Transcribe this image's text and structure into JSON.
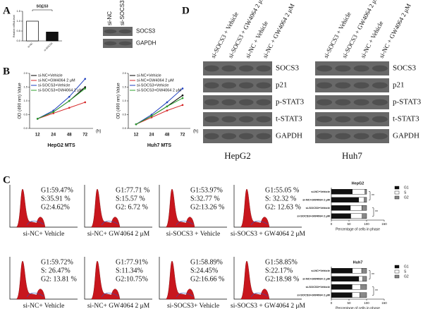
{
  "panel_labels": [
    "A",
    "B",
    "C",
    "D"
  ],
  "chart_data": [
    {
      "type": "bar",
      "title": "SOCS3",
      "y_label": "Relative mRNA level",
      "categories": [
        "si-NC",
        "si-SOCS3"
      ],
      "values": [
        1.0,
        0.45
      ],
      "colors": [
        "#ffffff",
        "#111111"
      ],
      "ylim": [
        0,
        1.5
      ],
      "yticks": [
        {
          "value": 0,
          "label": "0.0"
        },
        0.5,
        {
          "value": 1,
          "label": "1.0"
        },
        1.5
      ],
      "annotations": [
        "**"
      ]
    },
    {
      "type": "line",
      "title": "HepG2  MTS",
      "y_label": "OD (490 nm) Value",
      "x_unit": "(h)",
      "categories": [
        "12",
        "24",
        "48",
        "72"
      ],
      "ylim": [
        0,
        2
      ],
      "yticks": [
        {
          "value": 0,
          "label": "0.0"
        },
        0.5,
        {
          "value": 1,
          "label": "1.0"
        },
        1.5,
        {
          "value": 2,
          "label": "2.0"
        }
      ],
      "series": [
        {
          "name": "si-NC+Vehicle",
          "color": "#000000",
          "values": [
            0.35,
            0.6,
            1.0,
            1.5
          ]
        },
        {
          "name": "si-NC+GW4064  2 μM",
          "color": "#d62728",
          "values": [
            0.35,
            0.55,
            0.75,
            0.95
          ]
        },
        {
          "name": "si-SOCS3+Vehicle",
          "color": "#1f3fbf",
          "values": [
            0.35,
            0.65,
            1.15,
            1.8
          ]
        },
        {
          "name": "si-SOCS3+GW4064  2 μM",
          "color": "#2ca02c",
          "values": [
            0.35,
            0.6,
            1.0,
            1.45
          ]
        }
      ]
    },
    {
      "type": "line",
      "title": "Huh7  MTS",
      "y_label": "OD (490 nm) Value",
      "x_unit": "(h)",
      "categories": [
        "12",
        "24",
        "48",
        "72"
      ],
      "ylim": [
        0,
        2
      ],
      "yticks": [
        {
          "value": 0,
          "label": "0.0"
        },
        0.5,
        {
          "value": 1,
          "label": "1.0"
        },
        1.5,
        {
          "value": 2,
          "label": "2.0"
        }
      ],
      "series": [
        {
          "name": "si-NC+Vehicle",
          "color": "#000000",
          "values": [
            0.15,
            0.45,
            0.8,
            1.2
          ]
        },
        {
          "name": "si-NC+GW4064  2 μM",
          "color": "#d62728",
          "values": [
            0.15,
            0.4,
            0.65,
            0.85
          ]
        },
        {
          "name": "si-SOCS3+Vehicle",
          "color": "#1f3fbf",
          "values": [
            0.15,
            0.5,
            0.95,
            1.45
          ]
        },
        {
          "name": "si-SOCS3+GW4064  2 μM",
          "color": "#2ca02c",
          "values": [
            0.15,
            0.45,
            0.8,
            1.1
          ]
        }
      ]
    },
    {
      "type": "bar",
      "orientation": "horizontal",
      "stacked": true,
      "title": "HepG2",
      "x_label": "Percentage of cells in phase",
      "categories": [
        "si-NC+Vehicle",
        "si-NC+GW4064 2 μM",
        "si-SOCS3+Vehicle",
        "si-SOCS3+GW4064 2 μM"
      ],
      "xlim": [
        0,
        150
      ],
      "xticks": [
        0,
        50,
        100,
        150
      ],
      "annotations": [
        "**",
        "**"
      ],
      "series": [
        {
          "name": "G1",
          "color": "#111111",
          "values": [
            59.47,
            77.71,
            53.97,
            55.05
          ]
        },
        {
          "name": "S",
          "color": "#ffffff",
          "values": [
            35.91,
            15.57,
            32.77,
            32.32
          ]
        },
        {
          "name": "G2",
          "color": "#888888",
          "values": [
            4.62,
            6.72,
            13.26,
            12.63
          ]
        }
      ]
    },
    {
      "type": "bar",
      "orientation": "horizontal",
      "stacked": true,
      "title": "Huh7",
      "x_label": "Percentage of cells in phase",
      "categories": [
        "si-NC+Vehicle",
        "si-NC+GW4064 2 μM",
        "si-SOCS3+Vehicle",
        "si-SOCS3+GW4064 2 μM"
      ],
      "xlim": [
        0,
        150
      ],
      "xticks": [
        0,
        50,
        100,
        150
      ],
      "annotations": [
        "**",
        "**"
      ],
      "series": [
        {
          "name": "G1",
          "color": "#111111",
          "values": [
            59.72,
            77.91,
            58.89,
            58.85
          ]
        },
        {
          "name": "S",
          "color": "#ffffff",
          "values": [
            26.47,
            11.34,
            24.45,
            22.17
          ]
        },
        {
          "name": "G2",
          "color": "#888888",
          "values": [
            13.81,
            10.75,
            16.66,
            18.98
          ]
        }
      ]
    }
  ],
  "blot_A": {
    "lanes": [
      "si-NC",
      "si-SOCS3"
    ],
    "rows": [
      "SOCS3",
      "GAPDH"
    ]
  },
  "blot_D": {
    "lanes": [
      "si-SOCS3 + Vehicle",
      "si-SOCS3 + GW4064  2 μM",
      "si-NC + Vehicle",
      "si-NC + GW4064  2 μM"
    ],
    "blots": [
      {
        "cell_line": "HepG2",
        "rows": [
          "SOCS3",
          "p21",
          "p-STAT3",
          "t-STAT3",
          "GAPDH"
        ]
      },
      {
        "cell_line": "Huh7",
        "rows": [
          "SOCS3",
          "p21",
          "p-STAT3",
          "t-STAT3",
          "GAPDH"
        ]
      }
    ]
  },
  "flow": {
    "rows": [
      [
        {
          "stats": [
            "G1:59.47%",
            "S:35.91 %",
            "G2:4.62%"
          ],
          "label": "si-NC+ Vehicle"
        },
        {
          "stats": [
            "G1:77.71 %",
            "S:15.57 %",
            "G2: 6.72 %"
          ],
          "label": "si-NC+ GW4064  2 μM"
        },
        {
          "stats": [
            "G1:53.97%",
            "S:32.77 %",
            "G2:13.26 %"
          ],
          "label": "si-SOCS3 + Vehicle"
        },
        {
          "stats": [
            "G1:55.05 %",
            "S: 32.32 %",
            "G2: 12.63 %"
          ],
          "label": "si-SOCS3 + GW4064  2 μM"
        }
      ],
      [
        {
          "stats": [
            "G1:59.72%",
            "S: 26.47%",
            "G2: 13.81 %"
          ],
          "label": "si-NC+ Vehicle"
        },
        {
          "stats": [
            "G1:77.91%",
            "S:11.34%",
            "G2:10.75%"
          ],
          "label": "si-NC+ GW4064  2 μM"
        },
        {
          "stats": [
            "G1:58.89%",
            "S:24.45%",
            "G2:16.66 %"
          ],
          "label": "si-SOCS3+ Vehicle"
        },
        {
          "stats": [
            "G1:58.85%",
            "S:22.17%",
            "G2:18.98 %"
          ],
          "label": "si-SOCS3 + GW4064  2 μM"
        }
      ]
    ]
  }
}
